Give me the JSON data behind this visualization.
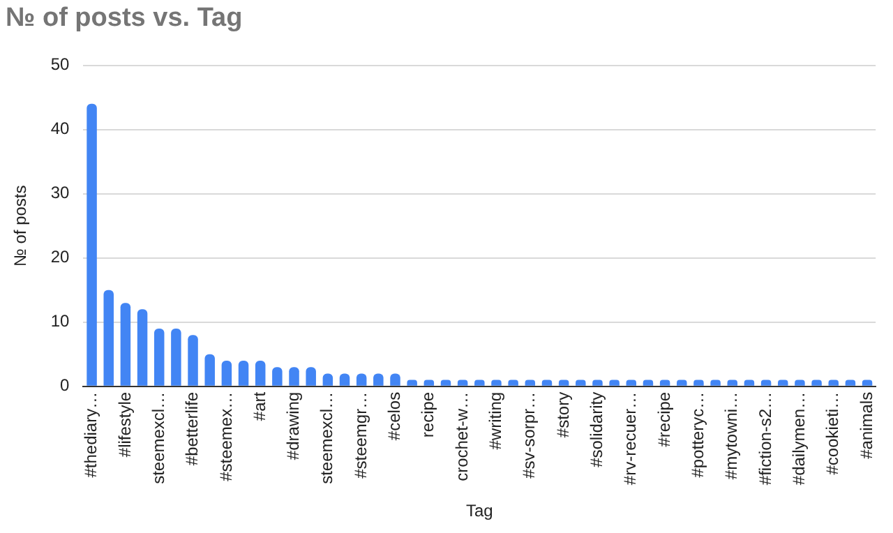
{
  "chart_data": {
    "type": "bar",
    "title": "№ of posts vs. Tag",
    "xlabel": "Tag",
    "ylabel": "№ of posts",
    "categories": [
      "#thediary…",
      null,
      "#lifestyle",
      null,
      "steemexcl…",
      null,
      "#betterlife",
      null,
      "#steemex…",
      null,
      "#art",
      null,
      "#drawing",
      null,
      "steemexcl…",
      null,
      "#steemgr…",
      null,
      "#celos",
      null,
      "recipe",
      null,
      "crochet-w…",
      null,
      "#writing",
      null,
      "#sv-sorpr…",
      null,
      "#story",
      null,
      "#solidarity",
      null,
      "#rv-recuer…",
      null,
      "#recipe",
      null,
      "#potteryc…",
      null,
      "#mytowni…",
      null,
      "#fiction-s2…",
      null,
      "#dailymen…",
      null,
      "#cookieti…",
      null,
      "#animals"
    ],
    "values": [
      44,
      15,
      13,
      12,
      9,
      9,
      8,
      5,
      4,
      4,
      4,
      3,
      3,
      3,
      2,
      2,
      2,
      2,
      2,
      1,
      1,
      1,
      1,
      1,
      1,
      1,
      1,
      1,
      1,
      1,
      1,
      1,
      1,
      1,
      1,
      1,
      1,
      1,
      1,
      1,
      1,
      1,
      1,
      1,
      1,
      1,
      1
    ],
    "color": "#4285f4",
    "ylim": [
      0,
      50
    ],
    "yticks": [
      0,
      10,
      20,
      30,
      40,
      50
    ],
    "grid": "y"
  }
}
